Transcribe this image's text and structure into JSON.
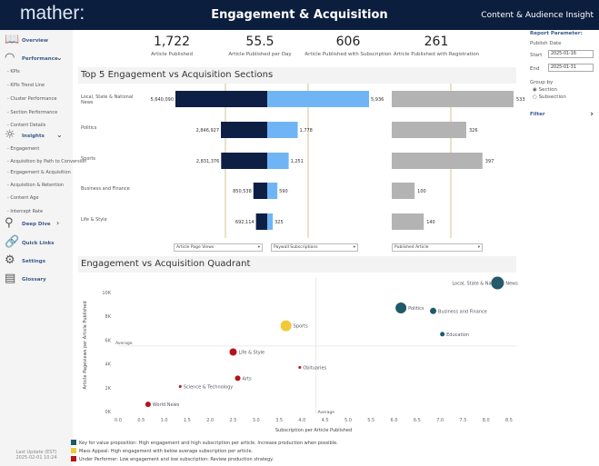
{
  "header": {
    "logo": "mather:",
    "title": "Engagement & Acquisition",
    "subtitle": "Content & Audience Insight"
  },
  "sidebar": {
    "items": [
      {
        "label": "Overview",
        "type": "main",
        "icon": "book-icon"
      },
      {
        "label": "Performance",
        "type": "main",
        "icon": "gauge-icon",
        "chevron": "down"
      },
      {
        "label": "- KPIs",
        "type": "sub"
      },
      {
        "label": "- KPIs Trend Line",
        "type": "sub"
      },
      {
        "label": "- Cluster Performance",
        "type": "sub"
      },
      {
        "label": "- Section Performance",
        "type": "sub"
      },
      {
        "label": "- Content Details",
        "type": "sub"
      },
      {
        "label": "Insights",
        "type": "main",
        "icon": "lightbulb-icon",
        "chevron": "down"
      },
      {
        "label": "- Engagement",
        "type": "sub"
      },
      {
        "label": "- Acquisition by Path to Conversion",
        "type": "sub"
      },
      {
        "label": "- Engagement & Acquisition",
        "type": "sub"
      },
      {
        "label": "- Acquisition & Retention",
        "type": "sub"
      },
      {
        "label": "- Content Age",
        "type": "sub"
      },
      {
        "label": "- Intercept Rate",
        "type": "sub"
      },
      {
        "label": "Deep Dive",
        "type": "main",
        "icon": "search-icon",
        "chevron": "right"
      },
      {
        "label": "Quick Links",
        "type": "main",
        "icon": "link-icon"
      },
      {
        "label": "Settings",
        "type": "main",
        "icon": "gear-icon"
      },
      {
        "label": "Glossary",
        "type": "main",
        "icon": "glossary-icon"
      }
    ],
    "last_update_label": "Last Update (EST)",
    "last_update": "2025-02-01  10:24"
  },
  "kpis": [
    {
      "value": "1,722",
      "label": "Article Published"
    },
    {
      "value": "55.5",
      "label": "Article Published per Day"
    },
    {
      "value": "606",
      "label": "Article Published with Subscription"
    },
    {
      "value": "261",
      "label": "Article Published with Registration"
    }
  ],
  "params": {
    "title": "Report Parameter:",
    "publish_date": "Publish Date",
    "start_label": "Start",
    "start": "2025-01-16",
    "end_label": "End",
    "end": "2025-01-31",
    "group_by": "Group by",
    "options": [
      "Section",
      "Subsection"
    ],
    "selected": "Section",
    "filter": "Filter"
  },
  "colors": {
    "navy": "#0c1e3e",
    "dark_bar": "#0d1f44",
    "light_bar": "#6fb5f5",
    "gray_bar": "#b3b3b3",
    "avg_line": "#c9b47a",
    "key": "#1f5a6a",
    "mass": "#f0c93a",
    "under": "#b5121b"
  },
  "chart_data": [
    {
      "type": "bar",
      "title": "Top 5 Engagement vs Acquisition Sections",
      "categories": [
        "Local, State & National News",
        "Politics",
        "Sports",
        "Business and Finance",
        "Life & Style"
      ],
      "series": [
        {
          "name": "Article Page Views",
          "values": [
            5640090,
            2846927,
            2831376,
            850538,
            692114
          ],
          "labels": [
            "5,640,090",
            "2,846,927",
            "2,831,376",
            "850,538",
            "692,114"
          ]
        },
        {
          "name": "Paywall Subscriptions",
          "values": [
            5936,
            1778,
            1251,
            590,
            325
          ],
          "labels": [
            "5,936",
            "1,778",
            "1,251",
            "590",
            "325"
          ]
        },
        {
          "name": "Published Article",
          "values": [
            533,
            326,
            397,
            100,
            140
          ],
          "labels": [
            "533",
            "326",
            "397",
            "100",
            "140"
          ]
        }
      ]
    },
    {
      "type": "scatter",
      "title": "Engagement vs Acquisition Quadrant",
      "xlabel": "Subscription per Article Published",
      "ylabel": "Article Pageviews per Article Published",
      "xlim": [
        0,
        8.5
      ],
      "ylim": [
        0,
        10000
      ],
      "xticks": [
        "0.0",
        "0.5",
        "1.0",
        "1.5",
        "2.0",
        "2.5",
        "3.0",
        "3.5",
        "4.0",
        "4.5",
        "5.0",
        "5.5",
        "6.0",
        "6.5",
        "7.0",
        "7.5",
        "8.0",
        "8.5"
      ],
      "yticks": [
        "0K",
        "2K",
        "4K",
        "6K",
        "8K",
        "10K"
      ],
      "average_label": "Average",
      "average_x": 4.3,
      "average_y": 5500,
      "points": [
        {
          "label": "Local, State & National News",
          "x": 8.25,
          "y": 10800,
          "size": 7,
          "group": "key"
        },
        {
          "label": "Politics",
          "x": 6.15,
          "y": 8700,
          "size": 6,
          "group": "key"
        },
        {
          "label": "Business and Finance",
          "x": 6.85,
          "y": 8450,
          "size": 3.5,
          "group": "key"
        },
        {
          "label": "Education",
          "x": 7.05,
          "y": 6500,
          "size": 2.5,
          "group": "key"
        },
        {
          "label": "Sports",
          "x": 3.65,
          "y": 7200,
          "size": 6,
          "group": "mass"
        },
        {
          "label": "Life & Style",
          "x": 2.5,
          "y": 5000,
          "size": 4,
          "group": "under"
        },
        {
          "label": "Obituaries",
          "x": 3.95,
          "y": 3700,
          "size": 1.5,
          "group": "under"
        },
        {
          "label": "Arts",
          "x": 2.6,
          "y": 2800,
          "size": 3,
          "group": "under"
        },
        {
          "label": "Science & Technology",
          "x": 1.35,
          "y": 2100,
          "size": 1.5,
          "group": "under"
        },
        {
          "label": "World News",
          "x": 0.65,
          "y": 600,
          "size": 3,
          "group": "under"
        }
      ],
      "legend": [
        {
          "group": "key",
          "text": "Key for value proposition: High engagement and high subscription per article. Increase production when possible."
        },
        {
          "group": "mass",
          "text": "Mass Appeal: High engagement with below average subscription per article."
        },
        {
          "group": "under",
          "text": "Under Performer: Low engagement and low subscription: Review production strategy."
        }
      ]
    }
  ]
}
